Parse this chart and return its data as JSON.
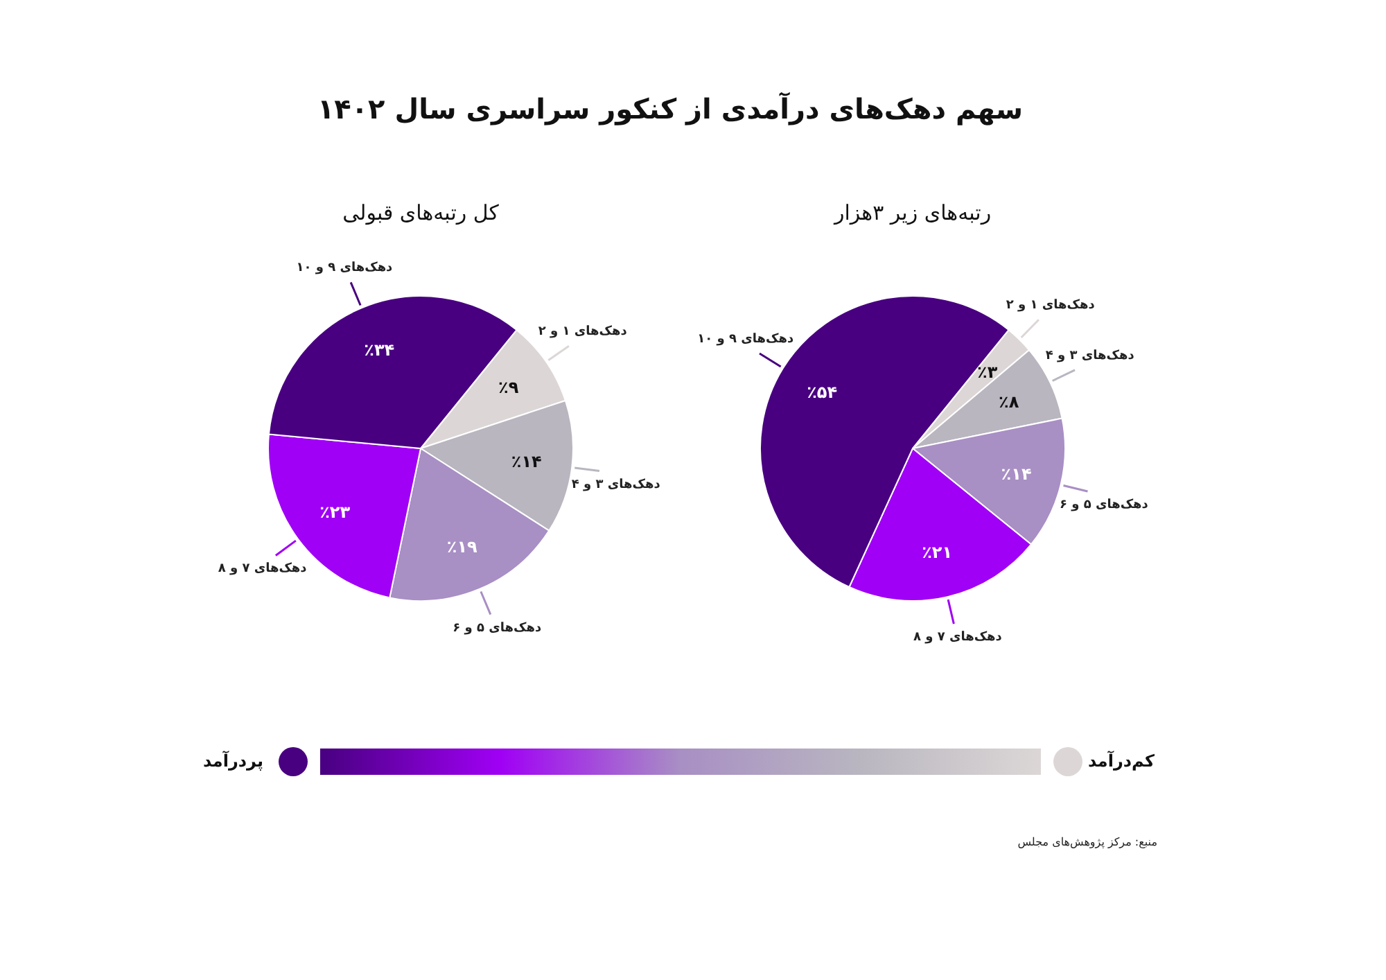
{
  "chart_data": [
    {
      "type": "pie",
      "title": "سهم دهک‌های درآمدی از کنکور سراسری سال ۱۴۰۲",
      "subtitle": "کل رتبه‌های قبولی",
      "categories": [
        "دهک‌های ۱ و ۲",
        "دهک‌های ۳ و ۴",
        "دهک‌های ۵ و ۶",
        "دهک‌های ۷ و ۸",
        "دهک‌های ۹ و ۱۰"
      ],
      "values": [
        9,
        14,
        19,
        23,
        34
      ],
      "colors": [
        "#dcd7d6",
        "#b9b6c0",
        "#a88fc4",
        "#a000f5",
        "#480080"
      ],
      "value_labels": [
        "٪۹",
        "٪۱۴",
        "٪۱۹",
        "٪۲۳",
        "٪۳۴"
      ],
      "annotations": [
        "پردرآمد",
        "کم‌درآمد",
        "منبع: مرکز پژوهش‌های مجلس"
      ]
    },
    {
      "type": "pie",
      "subtitle": "رتبه‌های زیر ۳هزار",
      "categories": [
        "دهک‌های ۱ و ۲",
        "دهک‌های ۳ و ۴",
        "دهک‌های ۵ و ۶",
        "دهک‌های ۷ و ۸",
        "دهک‌های ۹ و ۱۰"
      ],
      "values": [
        3,
        8,
        14,
        21,
        54
      ],
      "colors": [
        "#dcd7d6",
        "#b9b6c0",
        "#a88fc4",
        "#a000f5",
        "#480080"
      ],
      "value_labels": [
        "٪۳",
        "٪۸",
        "٪۱۴",
        "٪۲۱",
        "٪۵۴"
      ]
    }
  ]
}
